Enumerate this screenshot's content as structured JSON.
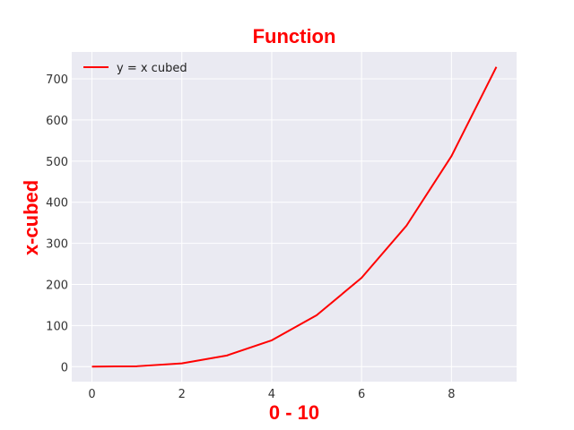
{
  "chart_data": {
    "type": "line",
    "title": "Function",
    "xlabel": "0 - 10",
    "ylabel": "x-cubed",
    "x": [
      0,
      1,
      2,
      3,
      4,
      5,
      6,
      7,
      8,
      9
    ],
    "series": [
      {
        "name": "y = x cubed",
        "values": [
          0,
          1,
          8,
          27,
          64,
          125,
          216,
          343,
          512,
          729
        ],
        "color": "#ff0000"
      }
    ],
    "xlim": [
      -0.45,
      9.45
    ],
    "ylim": [
      -36.45,
      765.45
    ],
    "xticks": [
      0,
      2,
      4,
      6,
      8
    ],
    "yticks": [
      0,
      100,
      200,
      300,
      400,
      500,
      600,
      700
    ],
    "grid": true,
    "legend_position": "top-left",
    "colors": {
      "plot_background": "#eaeaf2",
      "grid": "#ffffff",
      "label": "#ff0000"
    }
  }
}
